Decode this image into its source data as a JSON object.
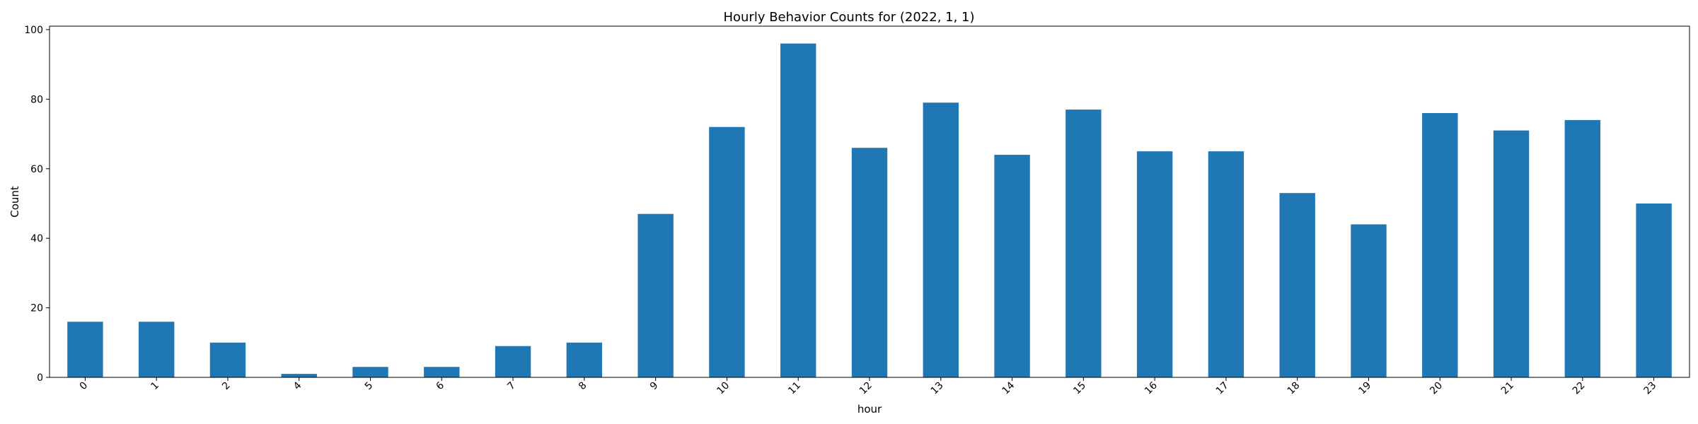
{
  "chart_data": {
    "type": "bar",
    "title": "Hourly Behavior Counts for (2022, 1, 1)",
    "xlabel": "hour",
    "ylabel": "Count",
    "categories": [
      "0",
      "1",
      "2",
      "4",
      "5",
      "6",
      "7",
      "8",
      "9",
      "10",
      "11",
      "12",
      "13",
      "14",
      "15",
      "16",
      "17",
      "18",
      "19",
      "20",
      "21",
      "22",
      "23"
    ],
    "values": [
      16,
      16,
      10,
      1,
      3,
      3,
      9,
      10,
      47,
      72,
      96,
      66,
      79,
      64,
      77,
      65,
      65,
      53,
      44,
      76,
      71,
      74,
      50
    ],
    "ylim": [
      0,
      101
    ],
    "yticks": [
      0,
      20,
      40,
      60,
      80,
      100
    ],
    "grid": false,
    "legend": "none",
    "bar_color": "#1f77b4"
  }
}
